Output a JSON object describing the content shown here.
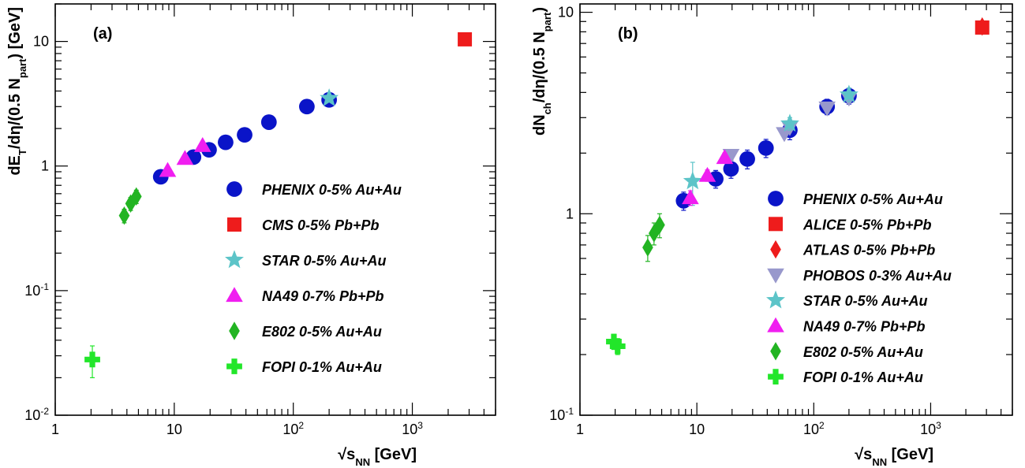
{
  "chart_data": [
    {
      "panel": "(a)",
      "type": "scatter",
      "xlabel_prefix": "√s",
      "xlabel_sub": "NN",
      "xlabel_suffix": " [GeV]",
      "ylabel": "dE",
      "ylabel_parts": [
        "dE",
        "T",
        "/dη/(0.5 N",
        "part",
        ") [GeV]"
      ],
      "xscale": "log",
      "yscale": "log",
      "xlim": [
        1,
        5000
      ],
      "ylim": [
        0.01,
        20
      ],
      "xticks": [
        {
          "value": 1,
          "label": "1"
        },
        {
          "value": 10,
          "label": "10"
        },
        {
          "value": 100,
          "label": "10",
          "sup": "2"
        },
        {
          "value": 1000,
          "label": "10",
          "sup": "3"
        }
      ],
      "yticks": [
        {
          "value": 0.01,
          "label": "10",
          "sup": "-2"
        },
        {
          "value": 0.1,
          "label": "10",
          "sup": "-1"
        },
        {
          "value": 1,
          "label": "1"
        },
        {
          "value": 10,
          "label": "10"
        }
      ],
      "legend_position": "right-middle",
      "series": [
        {
          "name": "PHENIX 0-5% Au+Au",
          "marker": "circle",
          "color": "#0a14c8",
          "points": [
            [
              7.7,
              0.82
            ],
            [
              14.5,
              1.18
            ],
            [
              19.6,
              1.35
            ],
            [
              27,
              1.55
            ],
            [
              39,
              1.78
            ],
            [
              62.4,
              2.25
            ],
            [
              130,
              3.0
            ],
            [
              200,
              3.4
            ]
          ]
        },
        {
          "name": "CMS 0-5% Pb+Pb",
          "marker": "square",
          "color": "#ee1c1c",
          "points": [
            [
              2760,
              10.4
            ]
          ]
        },
        {
          "name": "STAR 0-5% Au+Au",
          "marker": "star",
          "color": "#5cc4c8",
          "points": [
            [
              200,
              3.5
            ]
          ]
        },
        {
          "name": "NA49 0-7% Pb+Pb",
          "marker": "triangle",
          "color": "#f01ef0",
          "points": [
            [
              8.8,
              0.92
            ],
            [
              12.3,
              1.15
            ],
            [
              17.3,
              1.46
            ]
          ]
        },
        {
          "name": "E802 0-5% Au+Au",
          "marker": "diamond",
          "color": "#22b422",
          "points": [
            [
              3.8,
              0.4,
              0.05
            ],
            [
              4.3,
              0.5,
              0.06
            ],
            [
              4.8,
              0.57,
              0.07
            ]
          ]
        },
        {
          "name": "FOPI 0-1% Au+Au",
          "marker": "cross",
          "color": "#22e62a",
          "points": [
            [
              2.05,
              0.028,
              0.008
            ]
          ]
        }
      ]
    },
    {
      "panel": "(b)",
      "type": "scatter",
      "xlabel_prefix": "√s",
      "xlabel_sub": "NN",
      "xlabel_suffix": " [GeV]",
      "ylabel": "dN",
      "ylabel_parts": [
        "dN",
        "ch",
        "/dη/(0.5 N",
        "part",
        ")"
      ],
      "xscale": "log",
      "yscale": "log",
      "xlim": [
        1,
        5000
      ],
      "ylim": [
        0.1,
        11
      ],
      "xticks": [
        {
          "value": 1,
          "label": "1"
        },
        {
          "value": 10,
          "label": "10"
        },
        {
          "value": 100,
          "label": "10",
          "sup": "2"
        },
        {
          "value": 1000,
          "label": "10",
          "sup": "3"
        }
      ],
      "yticks": [
        {
          "value": 0.1,
          "label": "10",
          "sup": "-1"
        },
        {
          "value": 1,
          "label": "1"
        },
        {
          "value": 10,
          "label": "10"
        }
      ],
      "legend_position": "right-middle",
      "series": [
        {
          "name": "PHENIX 0-5% Au+Au",
          "marker": "circle",
          "color": "#0a14c8",
          "points": [
            [
              7.7,
              1.16,
              0.12
            ],
            [
              14.5,
              1.49,
              0.15
            ],
            [
              19.6,
              1.67,
              0.17
            ],
            [
              27,
              1.87,
              0.2
            ],
            [
              39,
              2.12,
              0.22
            ],
            [
              62.4,
              2.6,
              0.27
            ],
            [
              130,
              3.4,
              0.3
            ],
            [
              200,
              3.85,
              0.35
            ]
          ]
        },
        {
          "name": "ALICE 0-5% Pb+Pb",
          "marker": "square",
          "color": "#ee1c1c",
          "points": [
            [
              2760,
              8.4,
              0.4
            ]
          ]
        },
        {
          "name": "ATLAS 0-5% Pb+Pb",
          "marker": "diamond",
          "color": "#ee1c1c",
          "points": [
            [
              2760,
              8.5,
              0.4
            ]
          ]
        },
        {
          "name": "PHOBOS 0-3% Au+Au",
          "marker": "triangle-down",
          "color": "#9898cc",
          "points": [
            [
              19.6,
              1.95,
              0.1
            ],
            [
              56,
              2.5,
              0.1
            ],
            [
              62.4,
              2.68,
              0.12
            ],
            [
              130,
              3.35,
              0.15
            ],
            [
              200,
              3.75,
              0.2
            ]
          ]
        },
        {
          "name": "STAR 0-5% Au+Au",
          "marker": "star",
          "color": "#5cc4c8",
          "points": [
            [
              9.2,
              1.45,
              0.35
            ],
            [
              62.4,
              2.8,
              0.2
            ],
            [
              200,
              3.9,
              0.3
            ]
          ]
        },
        {
          "name": "NA49 0-7% Pb+Pb",
          "marker": "triangle",
          "color": "#f01ef0",
          "points": [
            [
              8.8,
              1.2,
              0.1
            ],
            [
              12.3,
              1.55,
              0.1
            ],
            [
              17.3,
              1.9,
              0.1
            ]
          ]
        },
        {
          "name": "E802 0-5% Au+Au",
          "marker": "diamond",
          "color": "#22b422",
          "points": [
            [
              3.8,
              0.68,
              0.1
            ],
            [
              4.3,
              0.8,
              0.1
            ],
            [
              4.8,
              0.88,
              0.12
            ]
          ]
        },
        {
          "name": "FOPI 0-1% Au+Au",
          "marker": "cross",
          "color": "#22e62a",
          "points": [
            [
              1.95,
              0.232,
              0.02
            ],
            [
              2.1,
              0.22,
              0.02
            ]
          ]
        }
      ]
    }
  ]
}
